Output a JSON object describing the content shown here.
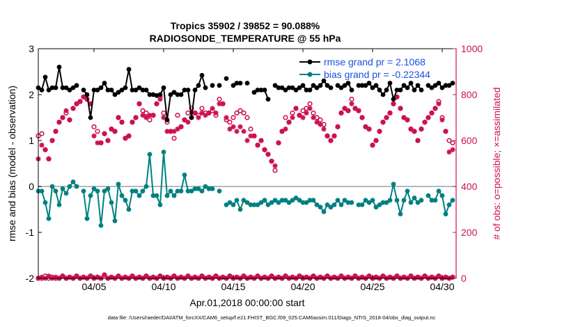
{
  "colors": {
    "rmse": "#000000",
    "bias": "#008080",
    "obs": "#cc1155",
    "legend_text": "#1a4fe0",
    "zero_line": "#a0a0a0",
    "frame": "#000000"
  },
  "chart_data": {
    "type": "line",
    "title": "Tropics 35902 / 39852 = 90.088%",
    "subtitle": "RADIOSONDE_TEMPERATURE @ 55 hPa",
    "xlabel": "Apr.01,2018 00:00:00 start",
    "ylabel_left": "rmse and bias (model - observation)",
    "ylabel_right": "# of obs: o=possible; ×=assimilated",
    "footer": "data file: /Users/raeder/DAI/ATM_forcXX/CAM6_setup/f.e21.FHIST_BGC.f09_025.CAM6assim.011/Diags_NTrS_2018-04/obs_diag_output.nc",
    "xlim": [
      1.0,
      31.0
    ],
    "ylim_left": [
      -2,
      3
    ],
    "ylim_right": [
      0,
      1000
    ],
    "x_ticks": [
      5,
      10,
      15,
      20,
      25,
      30
    ],
    "x_tick_labels": [
      "04/05",
      "04/10",
      "04/15",
      "04/20",
      "04/25",
      "04/30"
    ],
    "y_left_ticks": [
      -2,
      -1,
      0,
      1,
      2,
      3
    ],
    "y_left_tick_labels": [
      "-2",
      "-1",
      "0",
      "1",
      "2",
      "3"
    ],
    "y_right_ticks": [
      0,
      200,
      400,
      600,
      800,
      1000
    ],
    "y_right_tick_labels": [
      "0",
      "200",
      "400",
      "600",
      "800",
      "1000"
    ],
    "legend": {
      "position": "top-right",
      "entries": [
        "rmse grand pr = 2.1068",
        "bias grand pr = -0.22344"
      ]
    },
    "x": [
      1.0,
      1.25,
      1.5,
      1.75,
      2.0,
      2.25,
      2.5,
      2.75,
      3.0,
      3.25,
      3.5,
      3.75,
      4.0,
      4.25,
      4.5,
      4.75,
      5.0,
      5.25,
      5.5,
      5.75,
      6.0,
      6.25,
      6.5,
      6.75,
      7.0,
      7.25,
      7.5,
      7.75,
      8.0,
      8.25,
      8.5,
      8.75,
      9.0,
      9.25,
      9.5,
      9.75,
      10.0,
      10.25,
      10.5,
      10.75,
      11.0,
      11.25,
      11.5,
      11.75,
      12.0,
      12.25,
      12.5,
      12.75,
      13.0,
      13.25,
      13.5,
      13.75,
      14.0,
      14.25,
      14.5,
      14.75,
      15.0,
      15.25,
      15.5,
      15.75,
      16.0,
      16.25,
      16.5,
      16.75,
      17.0,
      17.25,
      17.5,
      17.75,
      18.0,
      18.25,
      18.5,
      18.75,
      19.0,
      19.25,
      19.5,
      19.75,
      20.0,
      20.25,
      20.5,
      20.75,
      21.0,
      21.25,
      21.5,
      21.75,
      22.0,
      22.25,
      22.5,
      22.75,
      23.0,
      23.25,
      23.5,
      23.75,
      24.0,
      24.25,
      24.5,
      24.75,
      25.0,
      25.25,
      25.5,
      25.75,
      26.0,
      26.25,
      26.5,
      26.75,
      27.0,
      27.25,
      27.5,
      27.75,
      28.0,
      28.25,
      28.5,
      28.75,
      29.0,
      29.25,
      29.5,
      29.75,
      30.0,
      30.25,
      30.5,
      30.75
    ],
    "series": [
      {
        "name": "rmse",
        "marker": "filled-circle",
        "values": [
          2.15,
          2.1,
          2.38,
          2.1,
          2.15,
          2.15,
          2.6,
          2.15,
          2.15,
          2.1,
          2.15,
          2.2,
          null,
          2.1,
          2.0,
          1.5,
          2.1,
          2.1,
          2.15,
          2.25,
          2.1,
          2.1,
          2.0,
          2.05,
          2.1,
          2.15,
          2.55,
          2.1,
          2.1,
          2.15,
          2.1,
          2.1,
          2.0,
          2.0,
          1.98,
          2.0,
          2.15,
          1.45,
          2.0,
          2.05,
          2.0,
          2.0,
          2.1,
          2.1,
          1.5,
          2.1,
          2.2,
          2.42,
          2.15,
          null,
          2.2,
          null,
          2.2,
          null,
          2.35,
          null,
          2.2,
          2.25,
          2.25,
          null,
          2.25,
          null,
          2.05,
          2.1,
          2.1,
          2.1,
          1.9,
          null,
          2.2,
          2.15,
          2.15,
          2.1,
          2.15,
          2.15,
          2.1,
          2.15,
          2.2,
          2.1,
          2.1,
          2.2,
          2.15,
          2.2,
          2.3,
          2.2,
          2.15,
          null,
          2.2,
          2.15,
          2.2,
          2.25,
          2.1,
          null,
          2.2,
          2.2,
          2.2,
          2.25,
          2.15,
          2.2,
          2.1,
          2.0,
          2.1,
          2.25,
          1.9,
          2.1,
          2.1,
          2.2,
          2.15,
          2.25,
          2.1,
          2.2,
          2.1,
          null,
          2.2,
          2.15,
          2.2,
          2.25,
          2.15,
          2.2,
          2.2,
          2.25
        ]
      },
      {
        "name": "bias",
        "marker": "filled-circle",
        "values": [
          -0.1,
          -0.1,
          -0.35,
          -0.7,
          0.0,
          -0.1,
          -0.4,
          -0.05,
          -0.15,
          0.0,
          0.1,
          0.0,
          null,
          -0.1,
          -0.7,
          -0.2,
          -0.05,
          -0.1,
          -0.85,
          -0.1,
          -0.05,
          -0.35,
          -0.75,
          0.05,
          -0.2,
          -0.3,
          -0.5,
          -0.1,
          -0.1,
          -0.2,
          -0.1,
          0.0,
          0.7,
          -0.2,
          -0.2,
          -0.4,
          0.75,
          -0.2,
          -0.1,
          -0.2,
          -0.1,
          -0.1,
          0.25,
          -0.1,
          -0.1,
          -0.05,
          -0.05,
          -0.1,
          0.0,
          -0.05,
          -0.05,
          null,
          -0.1,
          null,
          -0.4,
          -0.35,
          -0.4,
          -0.3,
          -0.5,
          -0.3,
          -0.35,
          -0.4,
          -0.4,
          -0.4,
          -0.35,
          -0.3,
          -0.4,
          -0.35,
          -0.3,
          -0.35,
          -0.3,
          -0.3,
          -0.35,
          -0.3,
          -0.25,
          -0.3,
          -0.35,
          -0.35,
          -0.3,
          -0.3,
          -0.4,
          -0.45,
          -0.55,
          -0.4,
          -0.45,
          -0.4,
          -0.3,
          -0.4,
          -0.3,
          -0.35,
          -0.35,
          null,
          -0.4,
          -0.4,
          -0.3,
          -0.35,
          -0.3,
          -0.45,
          -0.4,
          -0.35,
          -0.35,
          -0.3,
          0.05,
          -0.3,
          -0.6,
          -0.3,
          -0.1,
          -0.35,
          -0.25,
          -0.35,
          -0.3,
          null,
          -0.2,
          -0.3,
          -0.3,
          -0.1,
          -0.2,
          -0.6,
          -0.4,
          -0.3
        ]
      },
      {
        "name": "obs_possible",
        "marker": "open-circle",
        "values": [
          620,
          630,
          560,
          520,
          600,
          640,
          680,
          700,
          720,
          690,
          740,
          760,
          770,
          790,
          780,
          760,
          660,
          640,
          590,
          630,
          600,
          650,
          640,
          700,
          680,
          610,
          620,
          680,
          700,
          760,
          730,
          720,
          690,
          710,
          760,
          790,
          720,
          680,
          640,
          610,
          710,
          660,
          690,
          720,
          740,
          720,
          710,
          740,
          720,
          720,
          730,
          710,
          780,
          760,
          690,
          680,
          700,
          720,
          730,
          720,
          700,
          650,
          620,
          580,
          600,
          560,
          540,
          510,
          470,
          590,
          640,
          700,
          680,
          720,
          740,
          710,
          730,
          740,
          760,
          720,
          700,
          690,
          670,
          620,
          600,
          620,
          660,
          720,
          740,
          730,
          780,
          740,
          730,
          700,
          660,
          650,
          580,
          600,
          640,
          680,
          700,
          720,
          760,
          790,
          740,
          700,
          690,
          650,
          640,
          600,
          650,
          680,
          700,
          720,
          740,
          770,
          700,
          640,
          600,
          590
        ]
      },
      {
        "name": "obs_assimilated",
        "marker": "asterisk",
        "values": [
          520,
          580,
          560,
          520,
          600,
          640,
          680,
          700,
          730,
          690,
          740,
          760,
          770,
          790,
          780,
          760,
          620,
          590,
          590,
          630,
          600,
          650,
          640,
          700,
          680,
          610,
          620,
          680,
          700,
          760,
          710,
          700,
          710,
          710,
          760,
          780,
          700,
          640,
          640,
          640,
          650,
          660,
          690,
          680,
          700,
          720,
          700,
          720,
          710,
          720,
          740,
          720,
          760,
          760,
          700,
          650,
          660,
          640,
          660,
          640,
          600,
          620,
          620,
          580,
          600,
          560,
          540,
          510,
          490,
          590,
          640,
          650,
          680,
          700,
          740,
          710,
          700,
          720,
          740,
          700,
          680,
          670,
          650,
          620,
          600,
          620,
          660,
          720,
          740,
          730,
          760,
          740,
          730,
          700,
          660,
          650,
          580,
          600,
          640,
          680,
          700,
          720,
          760,
          790,
          740,
          700,
          690,
          650,
          640,
          600,
          650,
          680,
          700,
          720,
          740,
          760,
          690,
          640,
          550,
          560
        ]
      },
      {
        "name": "obs_possible_low",
        "marker": "open-circle",
        "values": [
          0,
          0,
          10,
          0,
          5,
          0,
          0,
          10,
          0,
          5,
          0,
          10,
          0,
          5,
          0,
          10,
          0,
          5,
          0,
          15,
          0,
          5,
          0,
          10,
          0,
          5,
          0,
          10,
          0,
          5,
          0,
          10,
          0,
          5,
          0,
          10,
          0,
          5,
          0,
          10,
          0,
          5,
          0,
          10,
          0,
          5,
          0,
          10,
          0,
          5,
          0,
          10,
          0,
          5,
          0,
          10,
          0,
          5,
          0,
          10,
          0,
          5,
          0,
          10,
          0,
          5,
          0,
          10,
          0,
          5,
          0,
          10,
          0,
          5,
          0,
          10,
          0,
          5,
          0,
          10,
          0,
          5,
          0,
          10,
          0,
          5,
          0,
          10,
          0,
          5,
          0,
          10,
          0,
          5,
          0,
          10,
          0,
          5,
          0,
          10,
          0,
          5,
          0,
          10,
          0,
          5,
          0,
          10,
          0,
          5,
          0,
          10,
          0,
          5,
          0,
          10,
          0,
          5,
          0,
          5
        ]
      },
      {
        "name": "obs_assimilated_low",
        "marker": "asterisk",
        "values": [
          0,
          5,
          0,
          10,
          0,
          5,
          0,
          10,
          0,
          5,
          0,
          10,
          0,
          5,
          0,
          10,
          0,
          5,
          0,
          15,
          0,
          5,
          0,
          10,
          0,
          5,
          0,
          10,
          0,
          5,
          0,
          10,
          0,
          5,
          0,
          10,
          0,
          5,
          0,
          10,
          0,
          5,
          0,
          10,
          0,
          5,
          0,
          10,
          0,
          5,
          0,
          10,
          0,
          5,
          0,
          10,
          0,
          5,
          0,
          10,
          0,
          5,
          0,
          10,
          0,
          5,
          0,
          10,
          0,
          5,
          0,
          10,
          0,
          5,
          0,
          10,
          0,
          5,
          0,
          10,
          0,
          5,
          0,
          10,
          0,
          5,
          0,
          10,
          0,
          5,
          0,
          10,
          0,
          5,
          0,
          10,
          0,
          5,
          0,
          10,
          0,
          5,
          0,
          10,
          0,
          5,
          0,
          10,
          0,
          5,
          0,
          10,
          0,
          5,
          0,
          10,
          0,
          5,
          0,
          5
        ]
      }
    ]
  }
}
